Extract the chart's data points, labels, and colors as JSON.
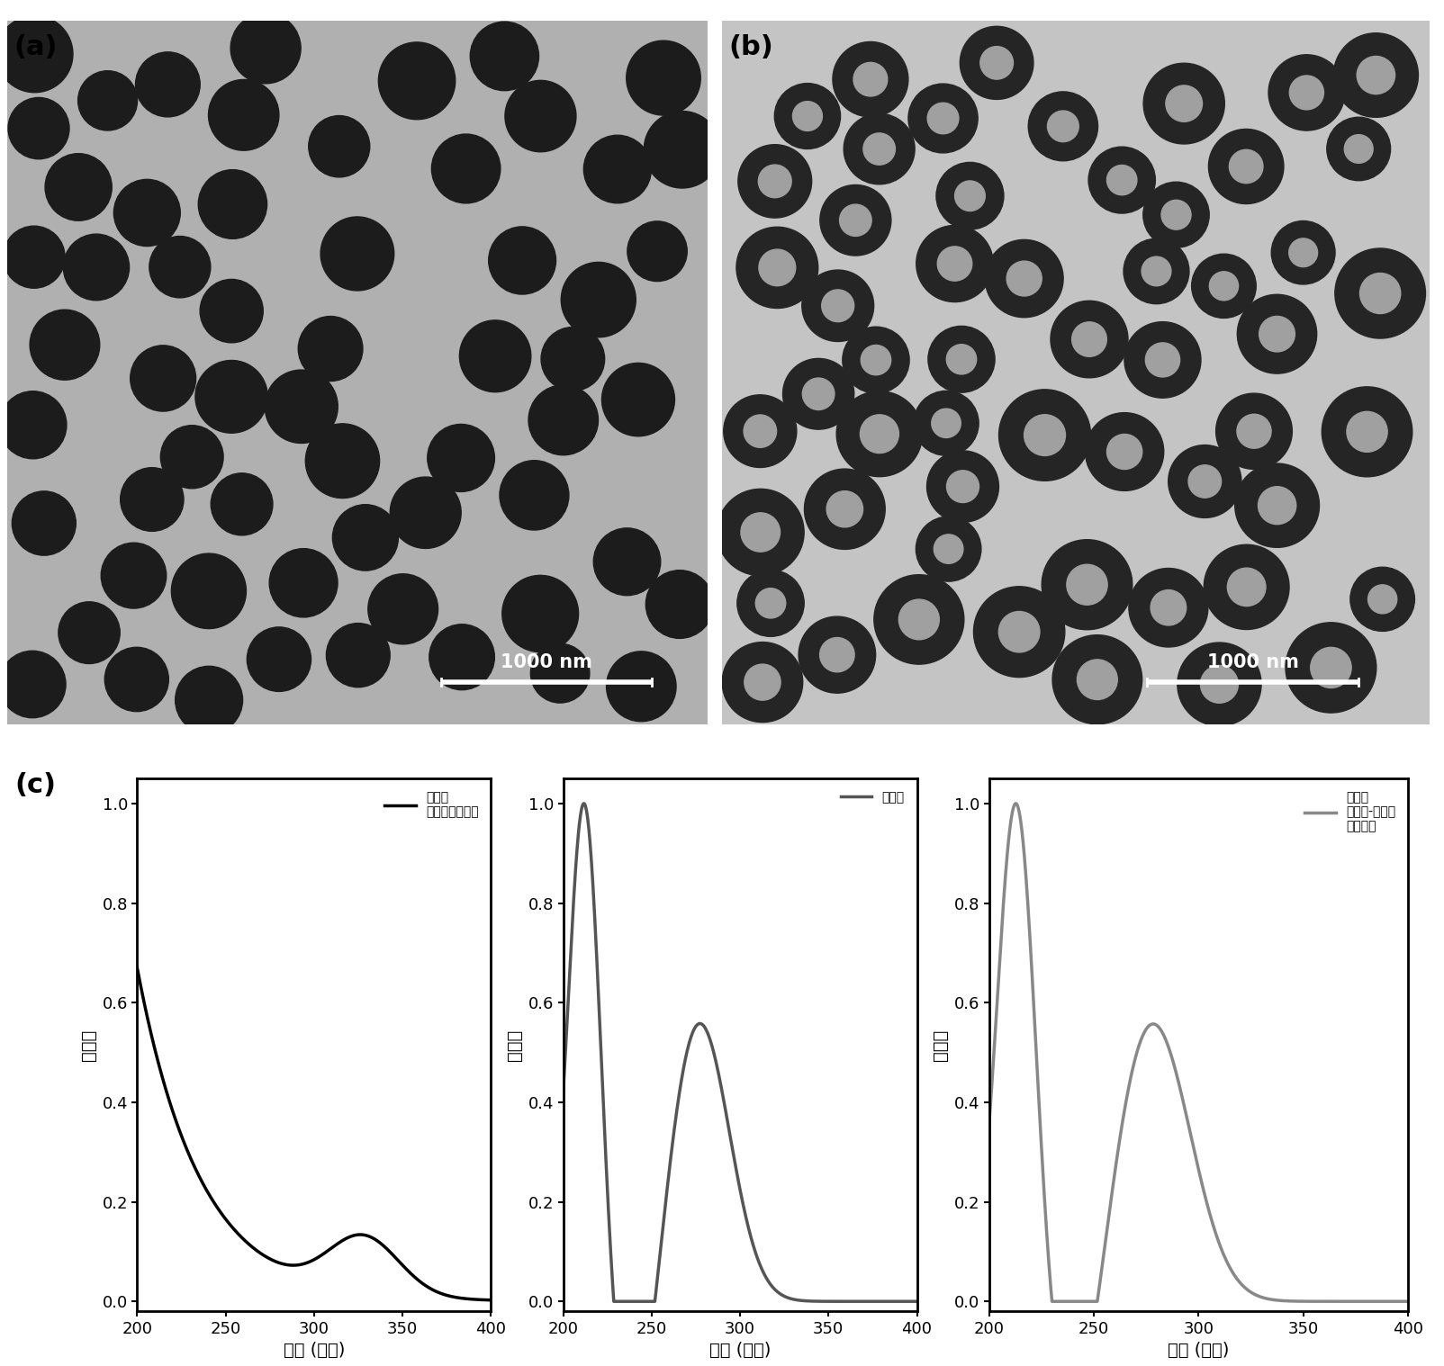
{
  "panel_a_label": "(a)",
  "panel_b_label": "(b)",
  "panel_c_label": "(c)",
  "scalebar_text": "1000 nm",
  "ylabel": "吸收値",
  "xlabel": "波长 (纳米)",
  "legend1_line1": "无定形",
  "legend1_line2": "碳酸钙纳米粒子",
  "legend2": "单宁酸",
  "legend3_line1": "无定形",
  "legend3_line2": "碳酸钙-单宁酸",
  "legend3_line3": "纳米粒子",
  "color1": "#000000",
  "color2": "#555555",
  "color3": "#888888",
  "xlim": [
    200,
    400
  ],
  "ylim": [
    -0.02,
    1.05
  ],
  "yticks": [
    0.0,
    0.2,
    0.4,
    0.6,
    0.8,
    1.0
  ],
  "xticks": [
    200,
    250,
    300,
    350,
    400
  ],
  "bg_a": "#b0b0b0",
  "bg_b": "#c4c4c4",
  "sphere_color_a": "#1c1c1c",
  "sphere_color_b_outer": "#252525",
  "sphere_color_b_inner": "#a0a0a0",
  "background_color": "#ffffff"
}
